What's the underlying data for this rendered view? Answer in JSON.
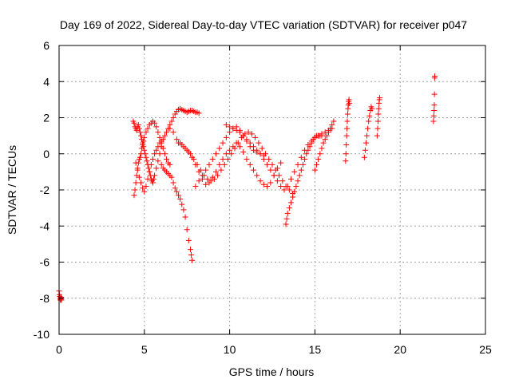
{
  "chart_data": {
    "type": "scatter",
    "title": "Day 169 of 2022, Sidereal Day-to-day VTEC variation (SDTVAR) for receiver p047",
    "xlabel": "GPS time / hours",
    "ylabel": "SDTVAR / TECUs",
    "xlim": [
      0,
      25
    ],
    "ylim": [
      -10,
      6
    ],
    "xticks": [
      0,
      5,
      10,
      15,
      20,
      25
    ],
    "yticks": [
      -10,
      -8,
      -6,
      -4,
      -2,
      0,
      2,
      4,
      6
    ],
    "grid": true,
    "marker": "plus",
    "color": "#ff0000",
    "series": [
      {
        "x": [
          0.0,
          0.02,
          0.04,
          0.06,
          0.08,
          0.1,
          0.12,
          0.14
        ],
        "y": [
          -7.6,
          -7.8,
          -7.9,
          -8.0,
          -8.1,
          -8.05,
          -7.95,
          -8.1
        ]
      },
      {
        "x": [
          4.35,
          4.4,
          4.45,
          4.5,
          4.55,
          4.6,
          4.65,
          4.7,
          4.75,
          4.8,
          4.85,
          4.9,
          4.95,
          5.0,
          5.05,
          5.1,
          5.15,
          5.2,
          5.25,
          5.3,
          5.35,
          5.4,
          5.45,
          5.5,
          5.55,
          5.6,
          5.7,
          5.8,
          5.9,
          6.0,
          6.1,
          6.2,
          6.3,
          6.4,
          6.5,
          6.6,
          6.7,
          6.8,
          6.9,
          7.0,
          7.1,
          7.2,
          7.3,
          7.4,
          7.5,
          7.6,
          7.7,
          7.8,
          7.9,
          8.0,
          8.1,
          8.2
        ],
        "y": [
          1.8,
          1.7,
          1.5,
          1.4,
          1.3,
          1.5,
          1.6,
          1.4,
          1.2,
          1.0,
          0.8,
          0.6,
          0.4,
          0.2,
          0.0,
          -0.2,
          -0.4,
          -0.6,
          -0.8,
          -1.0,
          -1.2,
          -1.4,
          -1.5,
          -1.6,
          -1.4,
          -1.2,
          -0.8,
          -0.4,
          0.0,
          0.4,
          0.8,
          1.0,
          1.2,
          1.4,
          1.6,
          1.8,
          2.0,
          2.2,
          2.35,
          2.45,
          2.5,
          2.45,
          2.4,
          2.35,
          2.3,
          2.35,
          2.4,
          2.4,
          2.35,
          2.3,
          2.3,
          2.25
        ]
      },
      {
        "x": [
          4.4,
          4.45,
          4.5,
          4.55,
          4.6,
          4.65,
          4.7,
          4.75,
          4.8,
          4.85,
          4.9,
          4.95,
          5.0,
          5.1,
          5.2,
          5.3,
          5.4,
          5.5,
          5.6,
          5.7,
          5.8,
          5.9,
          6.0,
          6.1,
          6.2,
          6.3,
          6.4,
          6.5
        ],
        "y": [
          -2.3,
          -2.0,
          -1.6,
          -1.2,
          -0.8,
          -0.5,
          -0.3,
          -0.2,
          0.0,
          0.3,
          0.5,
          0.7,
          0.9,
          1.2,
          1.4,
          1.6,
          1.7,
          1.8,
          1.7,
          1.5,
          1.2,
          0.9,
          0.6,
          0.3,
          0.0,
          -0.3,
          -0.5,
          -0.6
        ]
      },
      {
        "x": [
          4.5,
          4.6,
          4.7,
          4.8,
          4.9,
          5.0,
          5.1,
          5.2,
          5.3,
          5.4,
          5.5,
          5.6,
          5.7,
          5.8,
          5.9,
          6.0
        ],
        "y": [
          -0.5,
          -0.9,
          -1.3,
          -1.6,
          -1.9,
          -2.1,
          -1.8,
          -1.4,
          -1.0,
          -0.6,
          -0.3,
          0.0,
          0.2,
          0.4,
          0.6,
          0.7
        ]
      },
      {
        "x": [
          6.0,
          6.1,
          6.2,
          6.3,
          6.4,
          6.5,
          6.6,
          6.7,
          6.8,
          6.9,
          7.0,
          7.1,
          7.2,
          7.3,
          7.4,
          7.5,
          7.6,
          7.7,
          7.75,
          7.8
        ],
        "y": [
          -0.6,
          -0.8,
          -0.9,
          -1.0,
          -1.1,
          -1.2,
          -1.3,
          -1.6,
          -1.9,
          -2.1,
          -2.3,
          -2.5,
          -2.8,
          -3.1,
          -3.5,
          -4.2,
          -4.8,
          -5.3,
          -5.6,
          -5.9
        ]
      },
      {
        "x": [
          6.5,
          6.7,
          6.9,
          7.1,
          7.3,
          7.5,
          7.7,
          7.9,
          8.1,
          8.3,
          8.5,
          8.7,
          8.9,
          9.1,
          9.3,
          9.5,
          9.7,
          9.9,
          10.1,
          10.3,
          10.5,
          10.7,
          10.9,
          11.1,
          11.3,
          11.5,
          11.7,
          11.9,
          12.1,
          12.3,
          12.5,
          12.7,
          12.9,
          13.1,
          13.3,
          13.5,
          13.7
        ],
        "y": [
          1.4,
          1.2,
          0.8,
          0.6,
          0.4,
          0.2,
          0.0,
          -0.3,
          -0.6,
          -0.9,
          -1.2,
          -1.4,
          -1.5,
          -1.4,
          -1.2,
          -0.9,
          -0.6,
          -0.3,
          0.0,
          0.3,
          0.6,
          0.9,
          1.1,
          1.2,
          1.1,
          0.9,
          0.6,
          0.3,
          0.0,
          -0.3,
          -0.6,
          -0.9,
          -1.2,
          -1.5,
          -1.8,
          -2.0,
          -2.2
        ]
      },
      {
        "x": [
          7.0,
          7.2,
          7.4,
          7.6,
          7.8,
          8.0,
          8.2,
          8.4,
          8.6,
          8.8,
          9.0,
          9.2,
          9.4,
          9.6,
          9.8,
          10.0,
          10.2,
          10.4,
          10.6,
          10.8,
          11.0,
          11.2,
          11.4,
          11.6,
          11.8,
          12.0,
          12.2,
          12.4,
          12.6,
          12.8,
          13.0
        ],
        "y": [
          0.6,
          0.5,
          0.3,
          0.1,
          -0.2,
          -0.6,
          -1.0,
          -1.4,
          -1.7,
          -1.6,
          -1.3,
          -1.0,
          -0.6,
          -0.3,
          0.0,
          0.2,
          0.4,
          0.6,
          0.4,
          0.1,
          -0.3,
          -0.6,
          -0.9,
          -1.2,
          -1.5,
          -1.7,
          -1.8,
          -1.6,
          -1.2,
          -0.8,
          -0.5
        ]
      },
      {
        "x": [
          8.0,
          8.2,
          8.4,
          8.6,
          8.8,
          9.0,
          9.2,
          9.4,
          9.6,
          9.8,
          10.0,
          10.2,
          10.4,
          10.6,
          10.8,
          11.0,
          11.2,
          11.4,
          11.6,
          11.8,
          12.0
        ],
        "y": [
          -1.8,
          -1.5,
          -1.2,
          -0.9,
          -0.6,
          -0.3,
          0.0,
          0.3,
          0.6,
          0.9,
          1.2,
          1.4,
          1.5,
          1.3,
          1.0,
          0.7,
          0.4,
          0.2,
          0.1,
          0.0,
          -0.1
        ]
      },
      {
        "x": [
          9.8,
          10.0,
          10.2,
          10.4,
          10.6,
          10.8,
          11.0,
          11.2,
          11.4,
          11.6,
          11.8,
          12.0,
          12.2,
          12.4,
          12.6,
          12.8,
          13.0,
          13.2,
          13.4,
          13.6,
          13.8,
          14.0,
          14.2,
          14.4,
          14.6,
          14.8,
          15.0,
          15.2,
          15.4,
          15.6,
          15.8,
          16.0
        ],
        "y": [
          1.6,
          1.5,
          1.4,
          1.3,
          1.2,
          1.0,
          0.8,
          0.6,
          0.4,
          0.2,
          0.0,
          -0.3,
          -0.6,
          -0.9,
          -1.2,
          -1.5,
          -1.8,
          -2.0,
          -1.8,
          -1.4,
          -1.0,
          -0.6,
          -0.2,
          0.2,
          0.5,
          0.7,
          0.9,
          1.0,
          1.1,
          1.2,
          1.3,
          1.4
        ]
      },
      {
        "x": [
          13.3,
          13.35,
          13.4,
          13.5,
          13.6,
          13.7,
          13.8,
          13.9,
          14.0,
          14.1,
          14.2,
          14.3,
          14.4,
          14.5,
          14.6,
          14.7,
          14.8,
          14.9,
          15.0,
          15.1,
          15.2,
          15.3,
          15.4
        ],
        "y": [
          -3.9,
          -3.6,
          -3.3,
          -3.0,
          -2.7,
          -2.4,
          -2.1,
          -1.8,
          -1.5,
          -1.2,
          -0.9,
          -0.6,
          -0.3,
          0.0,
          0.2,
          0.4,
          0.6,
          0.8,
          0.9,
          1.0,
          1.0,
          1.0,
          1.0
        ]
      },
      {
        "x": [
          15.0,
          15.1,
          15.2,
          15.3,
          15.4,
          15.5,
          15.6,
          15.7,
          15.8,
          15.9,
          16.0,
          16.1
        ],
        "y": [
          -0.9,
          -0.6,
          -0.3,
          0.0,
          0.3,
          0.6,
          0.8,
          1.0,
          1.2,
          1.4,
          1.6,
          1.8
        ]
      },
      {
        "x": [
          16.8,
          16.82,
          16.84,
          16.86,
          16.88,
          16.9,
          16.92,
          16.94,
          16.96,
          16.98,
          17.0,
          17.02
        ],
        "y": [
          -0.4,
          0.0,
          0.5,
          1.0,
          1.4,
          1.8,
          2.2,
          2.5,
          2.7,
          2.9,
          3.0,
          2.8
        ]
      },
      {
        "x": [
          17.9,
          17.95,
          18.0,
          18.05,
          18.1,
          18.15,
          18.2,
          18.25,
          18.3,
          18.35
        ],
        "y": [
          -0.2,
          0.2,
          0.6,
          1.0,
          1.4,
          1.8,
          2.1,
          2.4,
          2.6,
          2.5
        ]
      },
      {
        "x": [
          18.65,
          18.68,
          18.7,
          18.72,
          18.74,
          18.76,
          18.78,
          18.8
        ],
        "y": [
          1.0,
          1.4,
          1.8,
          2.2,
          2.5,
          2.8,
          3.0,
          3.1
        ]
      },
      {
        "x": [
          21.95,
          21.97,
          21.99,
          22.0,
          22.01,
          22.02,
          22.03
        ],
        "y": [
          1.8,
          2.1,
          2.4,
          2.7,
          3.3,
          4.2,
          4.3
        ]
      }
    ]
  }
}
